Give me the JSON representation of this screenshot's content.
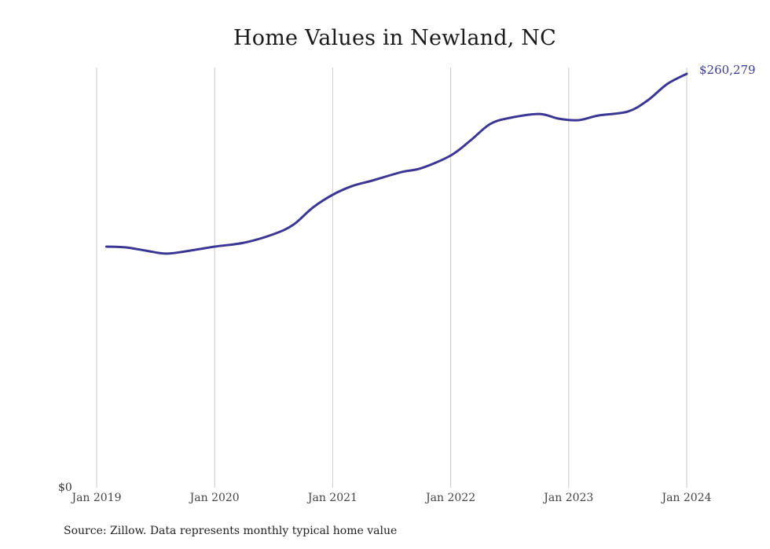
{
  "chart": {
    "title": "Home Values in Newland, NC",
    "end_label": "$260,279",
    "y_zero_label": "$0",
    "source": "Source: Zillow. Data represents monthly typical home value",
    "line_color": "#3b3594",
    "grid_color": "#c8c8c8"
  },
  "chart_data": {
    "type": "line",
    "title": "Home Values in Newland, NC",
    "xlabel": "",
    "ylabel": "",
    "x_tick_labels": [
      "Jan 2019",
      "Jan 2020",
      "Jan 2021",
      "Jan 2022",
      "Jan 2023",
      "Jan 2024"
    ],
    "y_tick_labels": [
      "$0"
    ],
    "ylim": [
      0,
      260279
    ],
    "grid": {
      "vertical": true,
      "horizontal": false
    },
    "legend": null,
    "annotations": [
      {
        "x": "Jan 2024",
        "text": "$260,279"
      }
    ],
    "series": [
      {
        "name": "Typical home value",
        "x": [
          "Feb 2019",
          "Apr 2019",
          "Jun 2019",
          "Aug 2019",
          "Oct 2019",
          "Jan 2020",
          "Apr 2020",
          "Jul 2020",
          "Sep 2020",
          "Nov 2020",
          "Jan 2021",
          "Mar 2021",
          "May 2021",
          "Aug 2021",
          "Oct 2021",
          "Jan 2022",
          "Mar 2022",
          "May 2022",
          "Jul 2022",
          "Oct 2022",
          "Dec 2022",
          "Feb 2023",
          "Apr 2023",
          "Jul 2023",
          "Sep 2023",
          "Nov 2023",
          "Jan 2024"
        ],
        "values": [
          151400,
          150900,
          148900,
          147000,
          148400,
          151400,
          153900,
          159300,
          165200,
          176100,
          184100,
          189600,
          193000,
          198400,
          200800,
          208800,
          218200,
          228600,
          232500,
          235000,
          232000,
          231100,
          234000,
          236500,
          243400,
          253800,
          260279
        ]
      }
    ]
  }
}
